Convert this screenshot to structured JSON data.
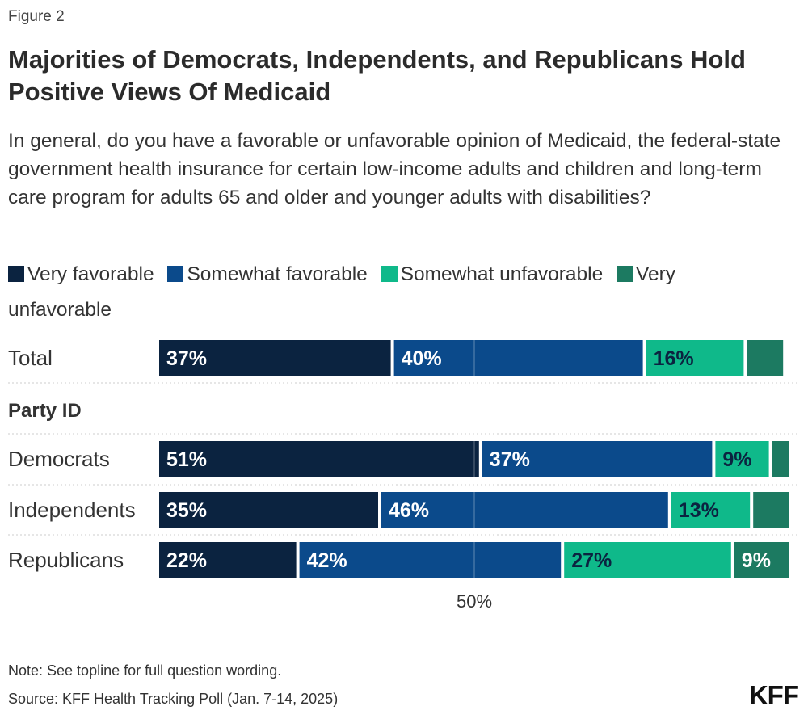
{
  "figure_label": "Figure 2",
  "title": "Majorities of Democrats, Independents, and Republicans Hold Positive Views Of Medicaid",
  "subtitle": "In general, do you have a favorable or unfavorable opinion of Medicaid, the federal-state government health insurance for certain low-income adults and children and long-term care program for adults 65 and older and younger adults with disabilities?",
  "note": "Note: See topline for full question wording.",
  "source": "Source: KFF Health Tracking Poll (Jan. 7-14, 2025)",
  "logo_text": "KFF",
  "colors": {
    "very_favorable": "#0b2340",
    "somewhat_favorable": "#0b4a8b",
    "somewhat_unfavorable": "#0fb98a",
    "very_unfavorable": "#1c7a61"
  },
  "chart_data": {
    "type": "bar",
    "orientation": "horizontal",
    "stacked": true,
    "title": "Majorities of Democrats, Independents, and Republicans Hold Positive Views Of Medicaid",
    "xlim": [
      0,
      100
    ],
    "reference_tick": "50%",
    "group_headers": [
      {
        "label": "Party ID",
        "before_category": "Democrats"
      }
    ],
    "categories": [
      "Total",
      "Democrats",
      "Independents",
      "Republicans"
    ],
    "series": [
      {
        "name": "Very favorable",
        "values": [
          37,
          51,
          35,
          22
        ],
        "labels": [
          "37%",
          "51%",
          "35%",
          "22%"
        ],
        "color": "#0b2340",
        "label_color": "#ffffff"
      },
      {
        "name": "Somewhat favorable",
        "values": [
          40,
          37,
          46,
          42
        ],
        "labels": [
          "40%",
          "37%",
          "46%",
          "42%"
        ],
        "color": "#0b4a8b",
        "label_color": "#ffffff"
      },
      {
        "name": "Somewhat unfavorable",
        "values": [
          16,
          9,
          13,
          27
        ],
        "labels": [
          "16%",
          "9%",
          "13%",
          "27%"
        ],
        "color": "#0fb98a",
        "label_color": "#0b2340"
      },
      {
        "name": "Very unfavorable",
        "values": [
          6,
          3,
          6,
          9
        ],
        "labels": [
          "",
          "",
          "",
          "9%"
        ],
        "color": "#1c7a61",
        "label_color": "#ffffff"
      }
    ]
  }
}
